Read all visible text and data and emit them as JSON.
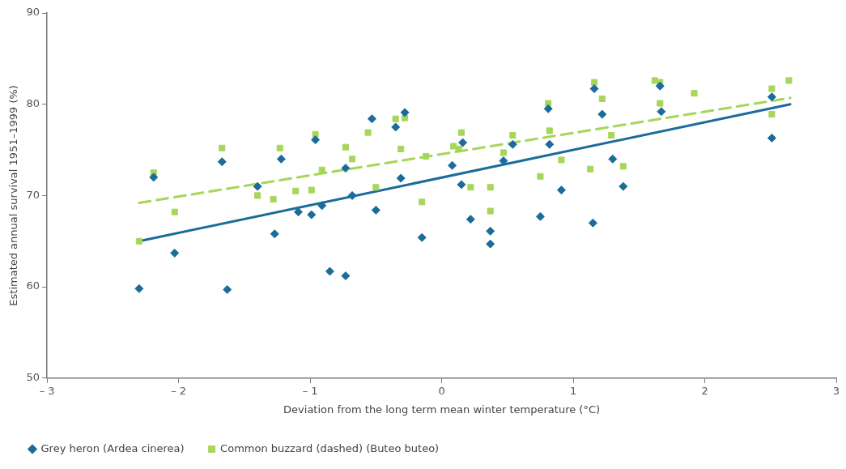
{
  "chart_data": {
    "type": "scatter",
    "xlabel": "Deviation from the long term mean winter temperature (°C)",
    "ylabel": "Estimated annual survival 1951–1999 (%)",
    "xlim": [
      -3,
      3
    ],
    "xticks": [
      {
        "value": -3,
        "label": "– 3"
      },
      {
        "value": -2,
        "label": "– 2"
      },
      {
        "value": -1,
        "label": "– 1"
      },
      0,
      1,
      2,
      3
    ],
    "ylim": [
      50,
      90
    ],
    "yticks": [
      50,
      60,
      70,
      80,
      90
    ],
    "grid": false,
    "legend": "bottom left",
    "series": [
      {
        "name": "Grey heron (Ardea cinerea)",
        "color": "#1b6b9b",
        "marker": "diamond",
        "x": [
          -2.3,
          -2.19,
          -2.03,
          -1.67,
          -1.63,
          -1.4,
          -1.22,
          -1.27,
          -1.09,
          -0.99,
          -0.91,
          -0.96,
          -0.85,
          -0.73,
          -0.68,
          -0.5,
          -0.53,
          -0.35,
          -0.28,
          -0.31,
          -0.15,
          -0.73,
          0.16,
          0.08,
          0.15,
          0.22,
          0.37,
          0.37,
          0.47,
          0.54,
          0.82,
          0.91,
          0.75,
          0.81,
          1.16,
          1.22,
          1.3,
          1.38,
          1.15,
          1.66,
          1.67,
          2.51,
          2.51
        ],
        "values": [
          59.8,
          72,
          63.7,
          73.7,
          59.7,
          71,
          74,
          65.8,
          68.2,
          67.9,
          68.9,
          76.1,
          61.7,
          61.2,
          70,
          68.4,
          78.4,
          77.5,
          79.1,
          71.9,
          65.4,
          73,
          75.8,
          73.3,
          71.2,
          67.4,
          66.1,
          64.7,
          73.8,
          75.6,
          75.6,
          70.6,
          67.7,
          79.5,
          81.7,
          78.9,
          74,
          71,
          67,
          82,
          79.2,
          80.8,
          76.3
        ]
      },
      {
        "name": "Common buzzard (dashed) (Buteo buteo)",
        "color": "#a6d65a",
        "marker": "square",
        "x": [
          -2.19,
          -2.3,
          -2.03,
          -1.67,
          -1.23,
          -1.4,
          -1.28,
          -1.11,
          -0.99,
          -0.96,
          -0.91,
          -0.73,
          -0.68,
          -0.56,
          -0.5,
          -0.31,
          -0.12,
          -0.15,
          -0.35,
          -0.28,
          0.15,
          0.13,
          0.09,
          0.22,
          0.37,
          0.37,
          0.47,
          0.54,
          0.81,
          0.82,
          0.91,
          0.75,
          1.16,
          1.22,
          1.29,
          1.38,
          1.13,
          1.62,
          1.66,
          1.66,
          1.92,
          2.51,
          2.51,
          2.64
        ],
        "values": [
          72.5,
          65,
          68.2,
          75.2,
          75.2,
          70,
          69.6,
          70.5,
          70.6,
          76.7,
          72.8,
          75.3,
          74,
          76.9,
          70.9,
          75.1,
          74.3,
          69.3,
          78.4,
          78.5,
          76.9,
          75.1,
          75.4,
          70.9,
          70.9,
          68.3,
          74.7,
          76.6,
          80.1,
          77.1,
          73.9,
          72.1,
          82.4,
          80.6,
          76.6,
          73.2,
          72.9,
          82.6,
          82.4,
          80.1,
          81.2,
          81.7,
          78.9,
          82.6
        ]
      },
      {
        "type": "line",
        "color": "#1b6b9b",
        "line_style": "solid",
        "x": [
          -2.3,
          2.65
        ],
        "values": [
          65,
          80
        ]
      },
      {
        "type": "line",
        "color": "#a6d65a",
        "line_style": "dashed",
        "x": [
          -2.3,
          2.65
        ],
        "values": [
          69.2,
          80.7
        ]
      }
    ]
  }
}
